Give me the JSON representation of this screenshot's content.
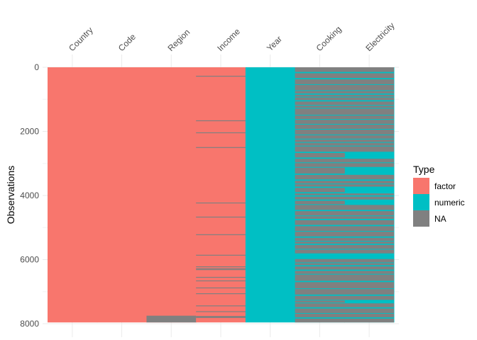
{
  "chart_data": {
    "type": "heatmap",
    "title": "",
    "xlabel": "",
    "ylabel": "Observations",
    "ylim": [
      0,
      8000
    ],
    "y_ticks": [
      "0",
      "2000",
      "4000",
      "6000",
      "8000"
    ],
    "n_rows": 7960,
    "grid": true,
    "x_axis_position": "top",
    "columns": [
      {
        "name": "Country",
        "type": "factor",
        "na_rows": []
      },
      {
        "name": "Code",
        "type": "factor",
        "na_rows": []
      },
      {
        "name": "Region",
        "type": "factor",
        "na_rows": [
          [
            7750,
            7960
          ]
        ]
      },
      {
        "name": "Income",
        "type": "factor",
        "na_rows": [
          [
            265,
            275
          ],
          [
            1655,
            1665
          ],
          [
            2030,
            2040
          ],
          [
            2490,
            2500
          ],
          [
            4220,
            4230
          ],
          [
            4660,
            4670
          ],
          [
            5210,
            5220
          ],
          [
            5850,
            5860
          ],
          [
            6210,
            6220
          ],
          [
            6270,
            6280
          ],
          [
            6300,
            6310
          ],
          [
            6540,
            6550
          ],
          [
            6650,
            6660
          ],
          [
            6870,
            6880
          ],
          [
            7050,
            7060
          ],
          [
            7430,
            7440
          ],
          [
            7610,
            7620
          ],
          [
            7760,
            7820
          ]
        ]
      },
      {
        "name": "Year",
        "type": "numeric",
        "na_rows": []
      },
      {
        "name": "Cooking",
        "type": "numeric",
        "na_fraction": 0.72
      },
      {
        "name": "Electricity",
        "type": "numeric",
        "na_fraction": 0.66
      }
    ],
    "legend": {
      "title": "Type",
      "position": "right",
      "entries": [
        {
          "label": "factor",
          "color": "#F8766D"
        },
        {
          "label": "numeric",
          "color": "#00BFC4"
        },
        {
          "label": "NA",
          "color": "#808080"
        }
      ]
    }
  }
}
